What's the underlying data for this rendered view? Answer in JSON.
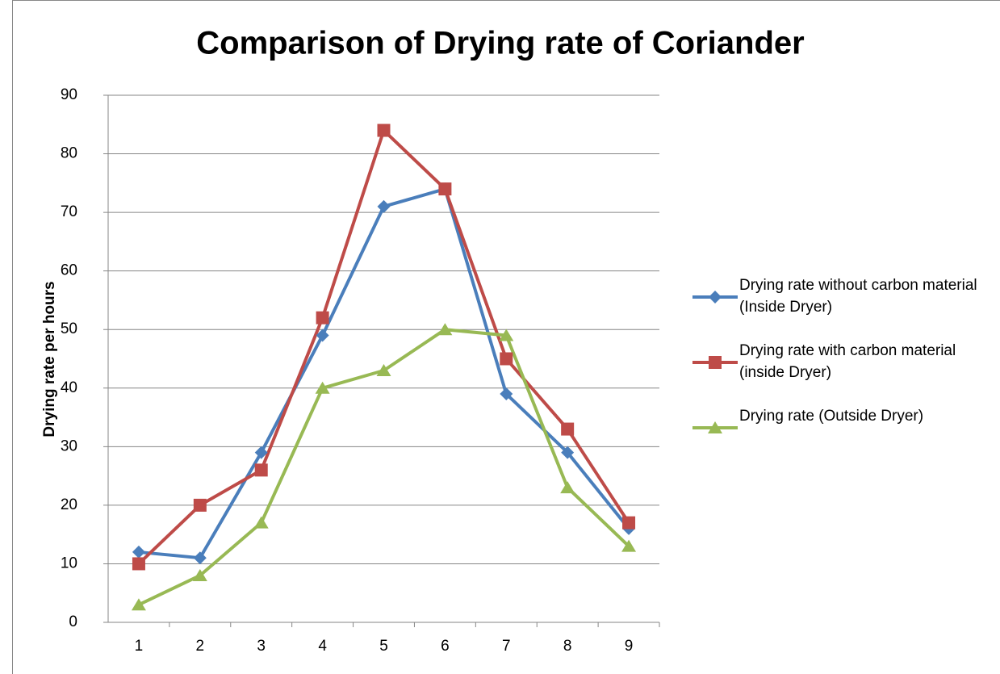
{
  "chart_data": {
    "type": "line",
    "title": "Comparison of Drying rate of Coriander",
    "y_label": "Drying rate per hours",
    "categories": [
      "1",
      "2",
      "3",
      "4",
      "5",
      "6",
      "7",
      "8",
      "9"
    ],
    "series": [
      {
        "name": "Drying rate without carbon material (Inside Dryer)",
        "color": "#4a7ebb",
        "marker": "diamond",
        "values": [
          12,
          11,
          29,
          49,
          71,
          74,
          39,
          29,
          16
        ]
      },
      {
        "name": "Drying rate with carbon material (inside Dryer)",
        "color": "#be4b48",
        "marker": "square",
        "values": [
          10,
          20,
          26,
          52,
          84,
          74,
          45,
          33,
          17
        ]
      },
      {
        "name": "Drying rate (Outside Dryer)",
        "color": "#98b954",
        "marker": "triangle",
        "values": [
          3,
          8,
          17,
          40,
          43,
          50,
          49,
          23,
          13
        ]
      }
    ],
    "ylim": [
      0,
      90
    ],
    "yticks": [
      0,
      10,
      20,
      30,
      40,
      50,
      60,
      70,
      80,
      90
    ],
    "grid": true,
    "legend": "right"
  }
}
